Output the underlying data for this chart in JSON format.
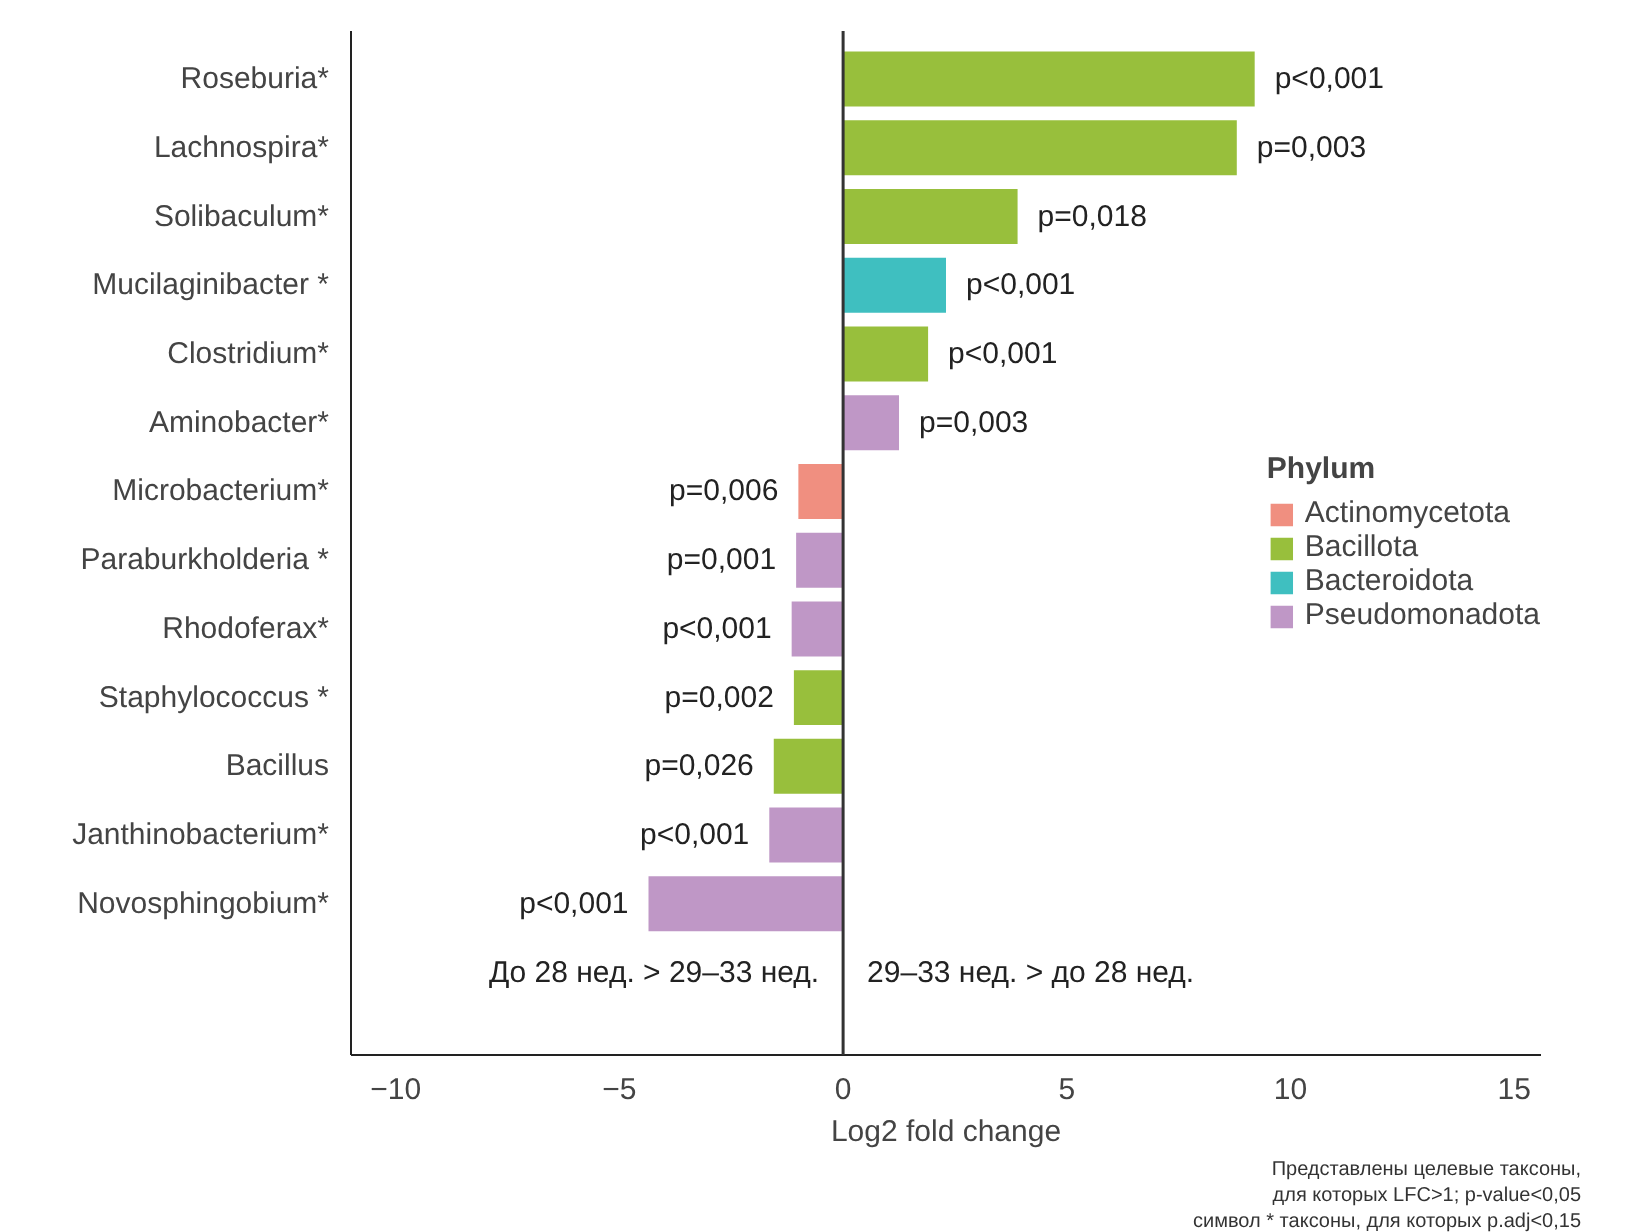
{
  "chart_data": {
    "type": "bar",
    "orientation": "horizontal",
    "xlabel": "Log2 fold change",
    "legend_title": "Phylum",
    "legend": "right",
    "grid": false,
    "categories": [
      "Roseburia*",
      "Lachnospira*",
      "Solibaculum*",
      "Mucilaginibacter *",
      "Clostridium*",
      "Aminobacter*",
      "Microbacterium*",
      "Paraburkholderia *",
      "Rhodoferax*",
      "Staphylococcus *",
      "Bacillus",
      "Janthinobacterium*",
      "Novosphingobium*"
    ],
    "series": [
      {
        "name": "Actinomycetota",
        "color": "#f08f80",
        "values": [
          null,
          null,
          null,
          null,
          null,
          null,
          -1.0,
          null,
          null,
          null,
          null,
          null,
          null
        ]
      },
      {
        "name": "Bacillota",
        "color": "#98bf3c",
        "values": [
          9.2,
          8.8,
          3.9,
          null,
          1.9,
          null,
          null,
          null,
          null,
          -1.1,
          -1.55,
          null,
          null
        ]
      },
      {
        "name": "Bacteroidota",
        "color": "#3fbfc0",
        "values": [
          null,
          null,
          null,
          2.3,
          null,
          null,
          null,
          null,
          null,
          null,
          null,
          null,
          null
        ]
      },
      {
        "name": "Pseudomonadota",
        "color": "#bf97c6",
        "values": [
          null,
          null,
          null,
          null,
          null,
          1.25,
          null,
          -1.05,
          -1.15,
          null,
          null,
          -1.65,
          -4.35
        ]
      }
    ],
    "xlim": [
      -11,
      15.6
    ],
    "xticks": [
      {
        "value": -10,
        "label": "−10"
      },
      {
        "value": -5,
        "label": "−5"
      },
      0,
      5,
      10,
      15
    ],
    "ref_lines": [
      {
        "axis": "x",
        "value": 0,
        "color": "#333333"
      }
    ],
    "annotations": [
      "До 28 нед. > 29–33 нед.",
      "29–33 нед. > до 28 нед.",
      "Представлены целевые таксоны,\nдля которых LFC>1; p-value<0,05\nсимвол * таксоны, для которых p.adj<0,15",
      {
        "text": "p<0,001",
        "x": 9.2,
        "y": "Roseburia*"
      },
      {
        "text": "p=0,003",
        "x": 8.8,
        "y": "Lachnospira*"
      },
      {
        "text": "p=0,018",
        "x": 3.9,
        "y": "Solibaculum*"
      },
      {
        "text": "p<0,001",
        "x": 2.3,
        "y": "Mucilaginibacter *"
      },
      {
        "text": "p<0,001",
        "x": 1.9,
        "y": "Clostridium*"
      },
      {
        "text": "p=0,003",
        "x": 1.25,
        "y": "Aminobacter*"
      },
      {
        "text": "p=0,006",
        "x": -1.0,
        "y": "Microbacterium*"
      },
      {
        "text": "p=0,001",
        "x": -1.05,
        "y": "Paraburkholderia *"
      },
      {
        "text": "p<0,001",
        "x": -1.15,
        "y": "Rhodoferax*"
      },
      {
        "text": "p=0,002",
        "x": -1.1,
        "y": "Staphylococcus *"
      },
      {
        "text": "p=0,026",
        "x": -1.55,
        "y": "Bacillus"
      },
      {
        "text": "p<0,001",
        "x": -1.65,
        "y": "Janthinobacterium*"
      },
      {
        "text": "p<0,001",
        "x": -4.35,
        "y": "Novosphingobium*"
      }
    ]
  }
}
